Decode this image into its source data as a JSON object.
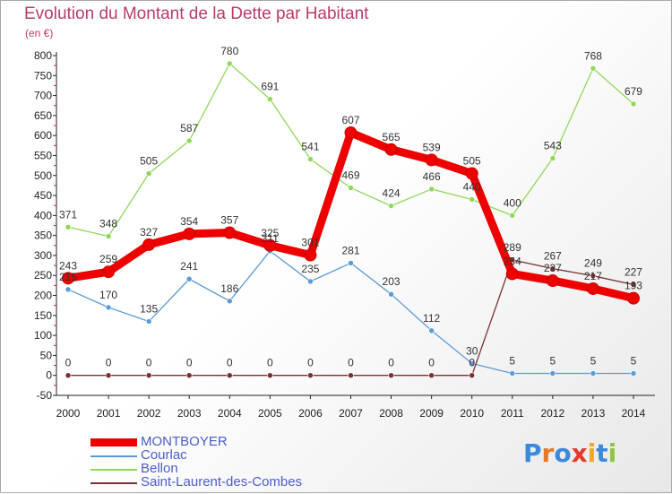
{
  "title": "Evolution du Montant de la Dette par Habitant",
  "subtitle": "(en €)",
  "logo": {
    "text": "Proxiti",
    "letters": [
      {
        "ch": "P",
        "color": "#3b8ad9"
      },
      {
        "ch": "r",
        "color": "#e5792a"
      },
      {
        "ch": "o",
        "color": "#3b8ad9"
      },
      {
        "ch": "x",
        "color": "#e23b2b"
      },
      {
        "ch": "i",
        "color": "#f0a820"
      },
      {
        "ch": "t",
        "color": "#3b8ad9"
      },
      {
        "ch": "i",
        "color": "#8cc63f"
      }
    ]
  },
  "chart_data": {
    "type": "line",
    "x": [
      "2000",
      "2001",
      "2002",
      "2003",
      "2004",
      "2005",
      "2006",
      "2007",
      "2008",
      "2009",
      "2010",
      "2011",
      "2012",
      "2013",
      "2014"
    ],
    "y_ticks": [
      -50,
      0,
      50,
      100,
      150,
      200,
      250,
      300,
      350,
      400,
      450,
      500,
      550,
      600,
      650,
      700,
      750,
      800
    ],
    "ylim": [
      -50,
      800
    ],
    "grid": false,
    "legend_position": "bottom-left",
    "series": [
      {
        "name": "MONTBOYER",
        "color": "#ee0000",
        "width": "thick",
        "values": [
          243,
          259,
          327,
          354,
          357,
          325,
          301,
          607,
          565,
          539,
          505,
          254,
          237,
          217,
          193
        ],
        "labels": [
          "243",
          "259",
          "327",
          "354",
          "357",
          "325",
          "301",
          "607",
          "565",
          "539",
          "505",
          "254",
          "237",
          "217",
          "193"
        ]
      },
      {
        "name": "Courlac",
        "color": "#5b9bd5",
        "width": "thin",
        "values": [
          215,
          170,
          135,
          241,
          186,
          311,
          235,
          281,
          203,
          112,
          30,
          5,
          5,
          5,
          5
        ],
        "labels": [
          "215",
          "170",
          "135",
          "241",
          "186",
          "311",
          "235",
          "281",
          "203",
          "112",
          "30",
          "5",
          "5",
          "5",
          "5"
        ]
      },
      {
        "name": "Bellon",
        "color": "#8fd85a",
        "width": "thin",
        "values": [
          371,
          348,
          505,
          587,
          780,
          691,
          541,
          469,
          424,
          466,
          440,
          400,
          543,
          768,
          679
        ],
        "labels": [
          "371",
          "348",
          "505",
          "587",
          "780",
          "691",
          "541",
          "469",
          "424",
          "466",
          "440",
          "400",
          "543",
          "768",
          "679"
        ]
      },
      {
        "name": "Saint-Laurent-des-Combes",
        "color": "#7a3030",
        "width": "thin",
        "values": [
          0,
          0,
          0,
          0,
          0,
          0,
          0,
          0,
          0,
          0,
          0,
          289,
          267,
          249,
          227
        ],
        "labels": [
          "0",
          "0",
          "0",
          "0",
          "0",
          "0",
          "0",
          "0",
          "0",
          "0",
          "0",
          "289",
          "267",
          "249",
          "227"
        ]
      }
    ]
  }
}
